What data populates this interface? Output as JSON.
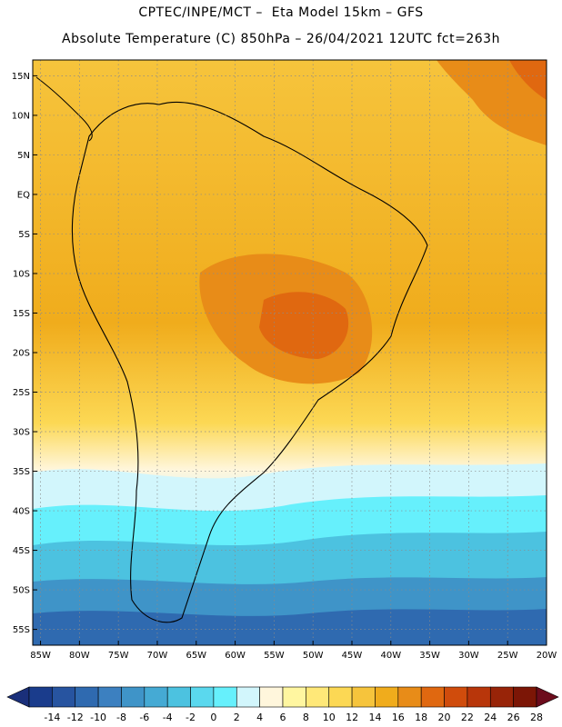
{
  "header": {
    "line1": "CPTEC/INPE/MCT –  Eta Model 15km – GFS",
    "line2": "Absolute Temperature (C) 850hPa – 26/04/2021 12UTC fct=263h"
  },
  "map": {
    "lat_labels": [
      "15N",
      "10N",
      "5N",
      "EQ",
      "5S",
      "10S",
      "15S",
      "20S",
      "25S",
      "30S",
      "35S",
      "40S",
      "45S",
      "50S",
      "55S"
    ],
    "lon_labels": [
      "85W",
      "80W",
      "75W",
      "70W",
      "65W",
      "60W",
      "55W",
      "50W",
      "45W",
      "40W",
      "35W",
      "30W",
      "25W",
      "20W"
    ]
  },
  "colorbar": {
    "labels": [
      "-14",
      "-12",
      "-10",
      "-8",
      "-6",
      "-4",
      "-2",
      "0",
      "2",
      "4",
      "6",
      "8",
      "10",
      "12",
      "14",
      "16",
      "18",
      "20",
      "22",
      "24",
      "26",
      "28"
    ],
    "colors": [
      "#1a3c8c",
      "#2754a0",
      "#2f6ab0",
      "#3c80c0",
      "#3f94c8",
      "#45aad4",
      "#4cc2e0",
      "#5ad8ee",
      "#66f0fc",
      "#d2f6fc",
      "#fff6dc",
      "#fff6a0",
      "#ffe878",
      "#fcd854",
      "#f6c43c",
      "#f0ac1c",
      "#e88c18",
      "#e06810",
      "#d04c0c",
      "#b8360a",
      "#982408",
      "#7c1606"
    ],
    "left_arrow": "#1a2f7a",
    "right_arrow": "#6c0c1c"
  }
}
